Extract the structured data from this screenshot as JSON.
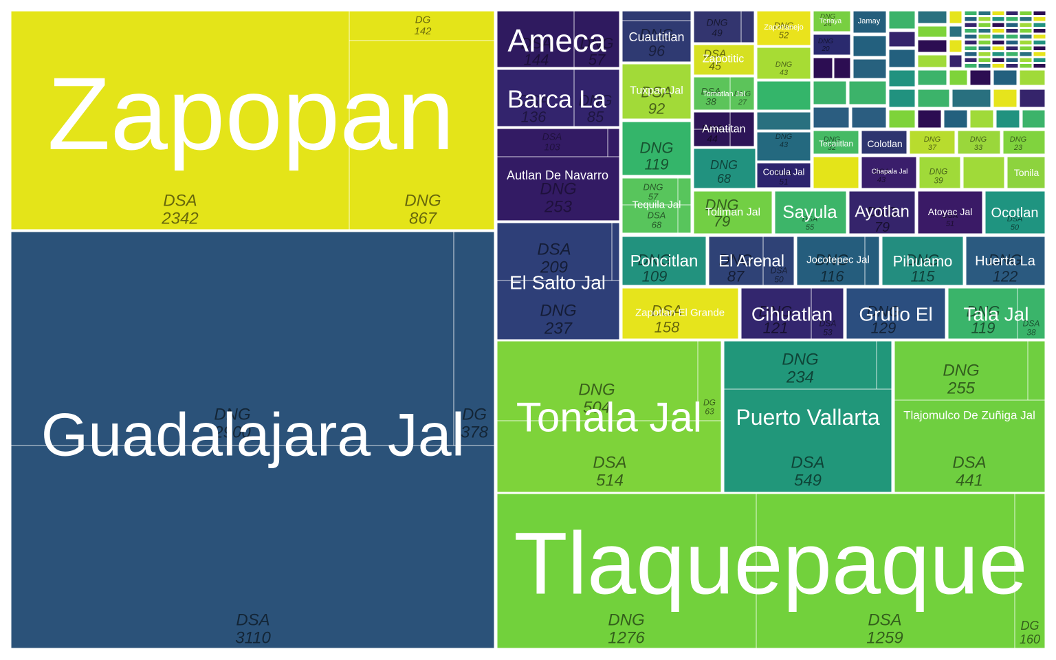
{
  "chart_data": {
    "type": "treemap",
    "title": "",
    "colors": {
      "yellow": "#e4e419",
      "navy": "#2b5279",
      "lime": "#72d13c",
      "lightgreen": "#a0da39",
      "purple": "#2f1b61",
      "darkpurple": "#3b1c6a",
      "indigo": "#33356f",
      "blue": "#2c4f80",
      "teal": "#21927f",
      "green": "#34b56a",
      "midgreen": "#4fc35c",
      "dteal": "#277e8e"
    },
    "groups": [
      {
        "name": "Zapopan",
        "color": "#e4e419",
        "label_size": 150,
        "subs": [
          {
            "name": "DSA",
            "value": 2342
          },
          {
            "name": "DNG",
            "value": 867
          },
          {
            "name": "DG",
            "value": 142
          }
        ]
      },
      {
        "name": "Guadalajara  Jal",
        "color": "#2b5279",
        "label_size": 88,
        "subs": [
          {
            "name": "DSA",
            "value": 3110
          },
          {
            "name": "DNG",
            "value": 2900
          },
          {
            "name": "DG",
            "value": 378
          }
        ]
      },
      {
        "name": "Tlaquepaque",
        "color": "#72d13c",
        "label_size": 128,
        "subs": [
          {
            "name": "DNG",
            "value": 1276
          },
          {
            "name": "DSA",
            "value": 1259
          },
          {
            "name": "DG",
            "value": 160
          }
        ]
      },
      {
        "name": "Tonala Jal",
        "color": "#7ed33a",
        "label_size": 60,
        "subs": [
          {
            "name": "DSA",
            "value": 514
          },
          {
            "name": "DNG",
            "value": 504
          },
          {
            "name": "DG",
            "value": 63
          }
        ]
      },
      {
        "name": "Puerto Vallarta",
        "color": "#21977a",
        "label_size": 32,
        "subs": [
          {
            "name": "DSA",
            "value": 549
          },
          {
            "name": "DNG",
            "value": 234
          }
        ]
      },
      {
        "name": "Tlajomulco De Zuñiga Jal",
        "color": "#6fcf40",
        "label_size": 17,
        "subs": [
          {
            "name": "DSA",
            "value": 441
          },
          {
            "name": "DNG",
            "value": 255
          }
        ]
      },
      {
        "name": "Ameca",
        "color": "#2f1a5f",
        "label_size": 46,
        "subs": [
          {
            "name": "DSA",
            "value": 144
          },
          {
            "name": "DNG",
            "value": 57
          }
        ]
      },
      {
        "name": "Barca La",
        "color": "#33246d",
        "label_size": 36,
        "subs": [
          {
            "name": "DSA",
            "value": 136
          },
          {
            "name": "DNG",
            "value": 85
          }
        ]
      },
      {
        "name": "Autlan De Navarro",
        "color": "#331b64",
        "label_size": 18,
        "subs": [
          {
            "name": "DNG",
            "value": 253
          },
          {
            "name": "DSA",
            "value": 103
          }
        ]
      },
      {
        "name": "El Salto  Jal",
        "color": "#2e3f78",
        "label_size": 28,
        "subs": [
          {
            "name": "DNG",
            "value": 237
          },
          {
            "name": "DSA",
            "value": 209
          }
        ]
      },
      {
        "name": "Cuautitlan",
        "color": "#2f3a72",
        "label_size": 18,
        "subs": [
          {
            "name": "DNG",
            "value": 96
          }
        ]
      },
      {
        "name": "Tuxpan Jal",
        "color": "#a2da38",
        "label_size": 16,
        "subs": [
          {
            "name": "DSA",
            "value": 92
          }
        ]
      },
      {
        "name": "Zapotitic",
        "color": "#d6e022",
        "label_size": 16,
        "subs": [
          {
            "name": "DSA",
            "value": 45
          }
        ]
      },
      {
        "name": "Tomatlan  Jal",
        "color": "#5cc45a",
        "label_size": 11,
        "subs": [
          {
            "name": "DSA",
            "value": 38
          },
          {
            "name": "DNG",
            "value": 27
          }
        ]
      },
      {
        "name": "Amatitan",
        "color": "#2d1557",
        "label_size": 16,
        "subs": [
          {
            "name": "DNG",
            "value": 44
          }
        ]
      },
      {
        "name": "Tequila Jal",
        "color": "#58c55c",
        "label_size": 15,
        "subs": [
          {
            "name": "DNG",
            "value": 57
          },
          {
            "name": "DSA",
            "value": 68
          }
        ]
      },
      {
        "name": "Toliman  Jal",
        "color": "#72cf44",
        "label_size": 16,
        "subs": [
          {
            "name": "DNG",
            "value": 79
          }
        ]
      },
      {
        "name": "Sayula",
        "color": "#3db569",
        "label_size": 26,
        "subs": [
          {
            "name": "DSA",
            "value": 55
          }
        ]
      },
      {
        "name": "Ayotlan",
        "color": "#35246b",
        "label_size": 24,
        "subs": [
          {
            "name": "DNG",
            "value": 79
          }
        ]
      },
      {
        "name": "Atoyac  Jal",
        "color": "#3a1a66",
        "label_size": 14,
        "subs": [
          {
            "name": "DSA",
            "value": 51
          }
        ]
      },
      {
        "name": "Ocotlan",
        "color": "#1f9480",
        "label_size": 20,
        "subs": [
          {
            "name": "DSA",
            "value": 50
          }
        ]
      },
      {
        "name": "Poncitlan",
        "color": "#22927e",
        "label_size": 24,
        "subs": [
          {
            "name": "DNG",
            "value": 109
          }
        ]
      },
      {
        "name": "El Arenal",
        "color": "#2f4276",
        "label_size": 24,
        "subs": [
          {
            "name": "DNG",
            "value": 87
          },
          {
            "name": "DSA",
            "value": 50
          }
        ]
      },
      {
        "name": "Jocotepec Jal",
        "color": "#255d7d",
        "label_size": 15,
        "subs": [
          {
            "name": "DNG",
            "value": 116
          }
        ]
      },
      {
        "name": "Pihuamo",
        "color": "#238d7f",
        "label_size": 22,
        "subs": [
          {
            "name": "DNG",
            "value": 115
          }
        ]
      },
      {
        "name": "Huerta La",
        "color": "#2b5a80",
        "label_size": 20,
        "subs": [
          {
            "name": "DNG",
            "value": 122
          }
        ]
      },
      {
        "name": "Zapotlan El Grande",
        "color": "#e6e41c",
        "label_size": 15,
        "subs": [
          {
            "name": "DSA",
            "value": 158
          }
        ]
      },
      {
        "name": "Cihuatlan",
        "color": "#33266e",
        "label_size": 28,
        "subs": [
          {
            "name": "DNG",
            "value": 121
          },
          {
            "name": "DSA",
            "value": 53
          }
        ]
      },
      {
        "name": "Grullo El",
        "color": "#2b4e7f",
        "label_size": 28,
        "subs": [
          {
            "name": "DNG",
            "value": 129
          }
        ]
      },
      {
        "name": "Tala Jal",
        "color": "#3ab46a",
        "label_size": 28,
        "subs": [
          {
            "name": "DNG",
            "value": 119
          },
          {
            "name": "DSA",
            "value": 38
          }
        ]
      },
      {
        "name": "Cocula Jal",
        "color": "#2d246e",
        "label_size": 13,
        "subs": [
          {
            "name": "DSA",
            "value": 51
          }
        ]
      },
      {
        "name": "Tecalitlan",
        "color": "#46ba64",
        "label_size": 12,
        "subs": [
          {
            "name": "DNG",
            "value": 32
          }
        ]
      },
      {
        "name": "Colotlan",
        "color": "#2e356f",
        "label_size": 14,
        "subs": []
      },
      {
        "name": "Chapala Jal",
        "color": "#3a1e6b",
        "label_size": 10,
        "subs": [
          {
            "name": "DSA",
            "value": 43
          }
        ]
      },
      {
        "name": "Tonila",
        "color": "#8dd33e",
        "label_size": 14,
        "subs": []
      },
      {
        "name": "Zapotlanejo",
        "color": "#eae31c",
        "label_size": 11,
        "subs": [
          {
            "name": "DNG",
            "value": 52
          }
        ]
      },
      {
        "name": "Tonaya",
        "color": "#78cf41",
        "label_size": 10,
        "subs": [
          {
            "name": "DNG",
            "value": 24
          }
        ]
      },
      {
        "name": "Jamay",
        "color": "#245e7c",
        "label_size": 11,
        "subs": []
      }
    ],
    "misc_labels": [
      {
        "name": "DNG",
        "value": 49
      },
      {
        "name": "DNG",
        "value": 119
      },
      {
        "name": "DNG",
        "value": 68
      },
      {
        "name": "DNG",
        "value": 43
      },
      {
        "name": "DNG",
        "value": 43
      },
      {
        "name": "DNG",
        "value": 39
      },
      {
        "name": "DNG",
        "value": 37
      },
      {
        "name": "DNG",
        "value": 33
      },
      {
        "name": "DNG",
        "value": 23
      },
      {
        "name": "DNG",
        "value": 20
      }
    ]
  }
}
